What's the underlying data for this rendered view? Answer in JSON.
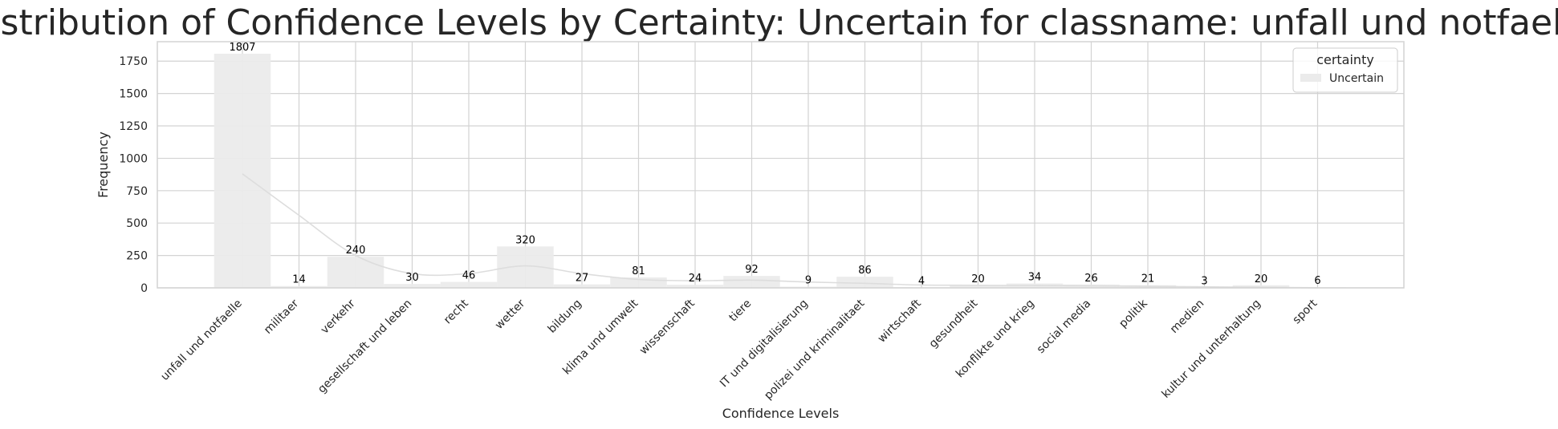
{
  "colors": {
    "bar": "#ebebeb",
    "kde_line": "#dddddd",
    "grid": "#d3d3d3",
    "frame": "#d3d3d3"
  },
  "chart_data": {
    "type": "bar",
    "title": "Distribution of Confidence Levels by Certainty: Uncertain for classname: unfall und notfaelle",
    "xlabel": "Confidence Levels",
    "ylabel": "Frequency",
    "ylim": [
      0,
      1900
    ],
    "yticks": [
      0,
      250,
      500,
      750,
      1000,
      1250,
      1500,
      1750
    ],
    "grid": true,
    "legend": {
      "title": "certainty",
      "placement": "top-right",
      "entries": [
        "Uncertain"
      ]
    },
    "categories": [
      "unfall und notfaelle",
      "militaer",
      "verkehr",
      "gesellschaft und leben",
      "recht",
      "wetter",
      "bildung",
      "klima und umwelt",
      "wissenschaft",
      "tiere",
      "IT und digitalisierung",
      "polizei und kriminalitaet",
      "wirtschaft",
      "gesundheit",
      "konflikte und krieg",
      "social media",
      "politik",
      "medien",
      "kultur und unterhaltung",
      "sport"
    ],
    "series": [
      {
        "name": "Uncertain",
        "values": [
          1807,
          14,
          240,
          30,
          46,
          320,
          27,
          81,
          24,
          92,
          9,
          86,
          4,
          20,
          34,
          26,
          21,
          3,
          20,
          6
        ]
      }
    ],
    "kde_curve": [
      880,
      560,
      250,
      110,
      110,
      170,
      110,
      65,
      55,
      60,
      45,
      35,
      22,
      20,
      18,
      16,
      12,
      8,
      4,
      1
    ]
  }
}
